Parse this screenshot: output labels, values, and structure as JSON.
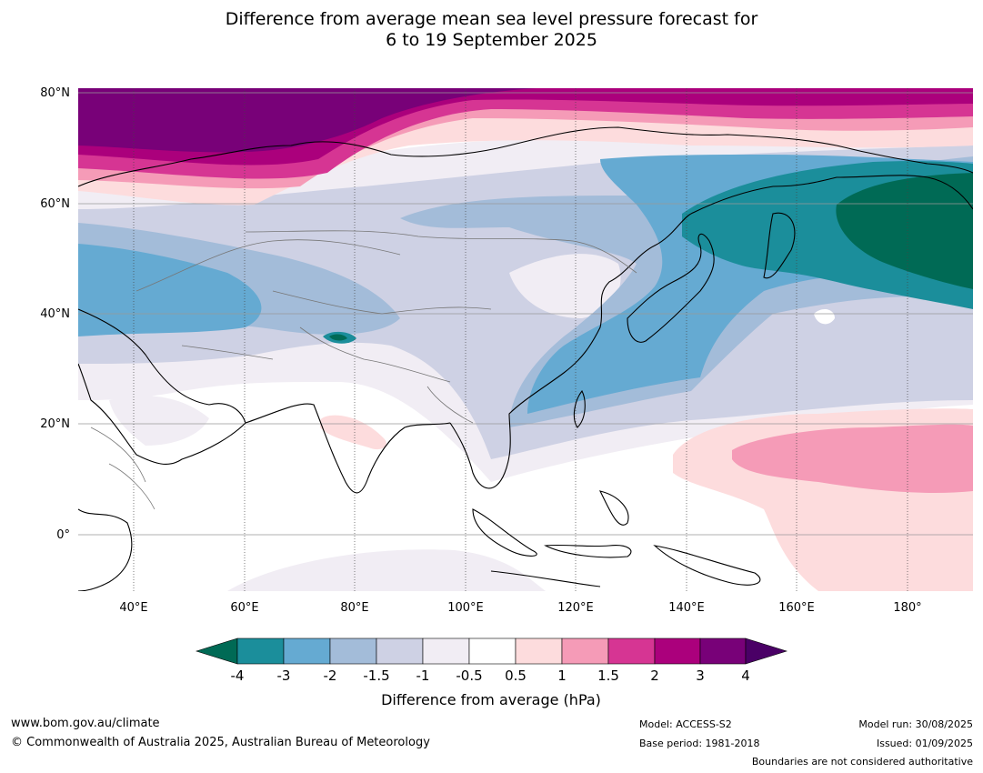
{
  "title": {
    "line1": "Difference from average mean sea level pressure forecast for",
    "line2": "6 to 19 September 2025"
  },
  "map": {
    "lat_labels": [
      "80°N",
      "60°N",
      "40°N",
      "20°N",
      "0°"
    ],
    "lon_labels": [
      "40°E",
      "60°E",
      "80°E",
      "100°E",
      "120°E",
      "140°E",
      "160°E",
      "180°"
    ],
    "extent": {
      "lon_min": 30,
      "lon_max": 192,
      "lat_min": -10,
      "lat_max": 80
    }
  },
  "legend": {
    "title": "Difference from average (hPa)",
    "ticks": [
      "-4",
      "-3",
      "-2",
      "-1.5",
      "-1",
      "-0.5",
      "0.5",
      "1",
      "1.5",
      "2",
      "3",
      "4"
    ],
    "colors": [
      "#006a55",
      "#1b8e9b",
      "#65aad2",
      "#a3bcd9",
      "#ced1e4",
      "#f1edf4",
      "#ffffff",
      "#fddcdd",
      "#f59bb7",
      "#d63593",
      "#ab007c",
      "#780178",
      "#4a0066"
    ]
  },
  "footer": {
    "website": "www.bom.gov.au/climate",
    "copyright": "© Commonwealth of Australia 2025, Australian Bureau of Meteorology",
    "model": "Model: ACCESS-S2",
    "base_period": "Base period: 1981-2018",
    "model_run": "Model run: 30/08/2025",
    "issued": "Issued: 01/09/2025",
    "boundaries": "Boundaries are not considered authoritative"
  }
}
